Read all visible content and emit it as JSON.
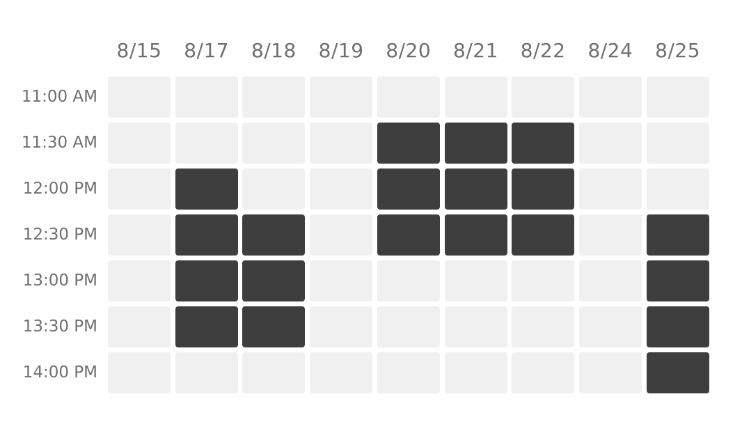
{
  "colors": {
    "empty": "#f0f0f0",
    "selected": "#3e3e3e",
    "label": "#6f6f6f"
  },
  "dates": [
    "8/15",
    "8/17",
    "8/18",
    "8/19",
    "8/20",
    "8/21",
    "8/22",
    "8/24",
    "8/25"
  ],
  "times": [
    "11:00 AM",
    "11:30 AM",
    "12:00 PM",
    "12:30 PM",
    "13:00 PM",
    "13:30 PM",
    "14:00 PM"
  ],
  "selected": [
    [
      0,
      0,
      0,
      0,
      0,
      0,
      0,
      0,
      0
    ],
    [
      0,
      0,
      0,
      0,
      1,
      1,
      1,
      0,
      0
    ],
    [
      0,
      1,
      0,
      0,
      1,
      1,
      1,
      0,
      0
    ],
    [
      0,
      1,
      1,
      0,
      1,
      1,
      1,
      0,
      1
    ],
    [
      0,
      1,
      1,
      0,
      0,
      0,
      0,
      0,
      1
    ],
    [
      0,
      1,
      1,
      0,
      0,
      0,
      0,
      0,
      1
    ],
    [
      0,
      0,
      0,
      0,
      0,
      0,
      0,
      0,
      1
    ]
  ]
}
